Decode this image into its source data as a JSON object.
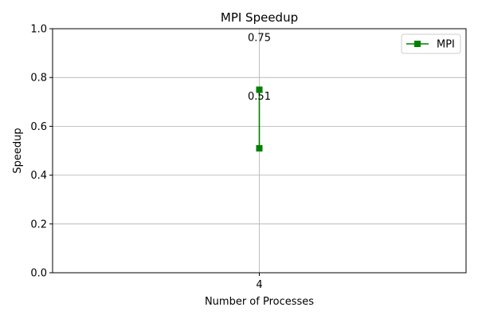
{
  "chart_data": {
    "type": "line",
    "title": "MPI Speedup",
    "xlabel": "Number of Processes",
    "ylabel": "Speedup",
    "ylim": [
      0,
      1.0
    ],
    "yticks": [
      "0.0",
      "0.2",
      "0.4",
      "0.6",
      "0.8",
      "1.0"
    ],
    "xticks": [
      "4"
    ],
    "grid": true,
    "legend_position": "top-right",
    "series": [
      {
        "name": "MPI",
        "color": "#008000",
        "marker": "square",
        "points": [
          {
            "x": 4,
            "y": 0.51,
            "label": "0.51"
          },
          {
            "x": 4,
            "y": 0.75,
            "label": "0.75"
          }
        ]
      }
    ]
  }
}
